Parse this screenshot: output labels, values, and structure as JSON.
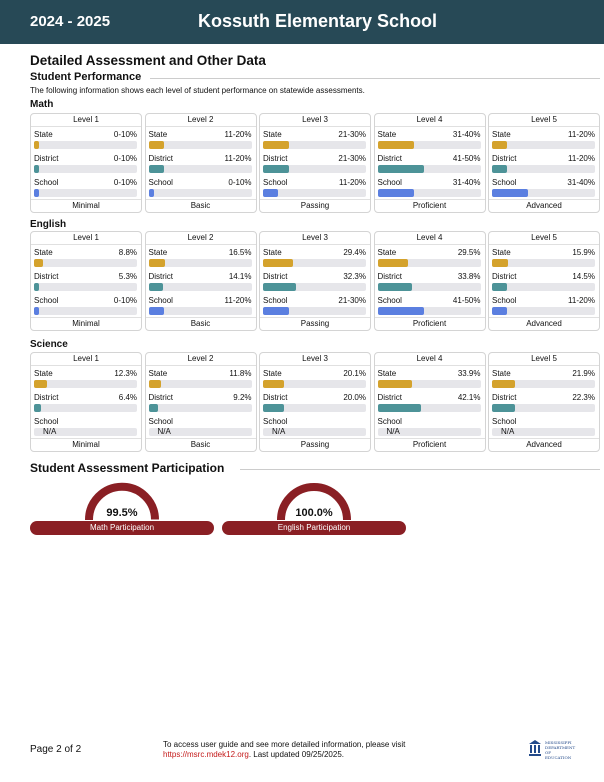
{
  "header": {
    "year": "2024 - 2025",
    "school": "Kossuth Elementary School"
  },
  "page_title": "Detailed Assessment and Other Data",
  "performance": {
    "title": "Student Performance",
    "description": "The following information shows each level of student performance on statewide assessments.",
    "subjects": [
      {
        "name": "Math",
        "levels": [
          {
            "header": "Level 1",
            "footer": "Minimal",
            "state": "0-10%",
            "state_pct": 5,
            "district": "0-10%",
            "district_pct": 5,
            "school": "0-10%",
            "school_pct": 5
          },
          {
            "header": "Level 2",
            "footer": "Basic",
            "state": "11-20%",
            "state_pct": 15,
            "district": "11-20%",
            "district_pct": 15,
            "school": "0-10%",
            "school_pct": 5
          },
          {
            "header": "Level 3",
            "footer": "Passing",
            "state": "21-30%",
            "state_pct": 25,
            "district": "21-30%",
            "district_pct": 25,
            "school": "11-20%",
            "school_pct": 15
          },
          {
            "header": "Level 4",
            "footer": "Proficient",
            "state": "31-40%",
            "state_pct": 35,
            "district": "41-50%",
            "district_pct": 45,
            "school": "31-40%",
            "school_pct": 35
          },
          {
            "header": "Level 5",
            "footer": "Advanced",
            "state": "11-20%",
            "state_pct": 15,
            "district": "11-20%",
            "district_pct": 15,
            "school": "31-40%",
            "school_pct": 35
          }
        ]
      },
      {
        "name": "English",
        "levels": [
          {
            "header": "Level 1",
            "footer": "Minimal",
            "state": "8.8%",
            "state_pct": 8.8,
            "district": "5.3%",
            "district_pct": 5.3,
            "school": "0-10%",
            "school_pct": 5
          },
          {
            "header": "Level 2",
            "footer": "Basic",
            "state": "16.5%",
            "state_pct": 16.5,
            "district": "14.1%",
            "district_pct": 14.1,
            "school": "11-20%",
            "school_pct": 15
          },
          {
            "header": "Level 3",
            "footer": "Passing",
            "state": "29.4%",
            "state_pct": 29.4,
            "district": "32.3%",
            "district_pct": 32.3,
            "school": "21-30%",
            "school_pct": 25
          },
          {
            "header": "Level 4",
            "footer": "Proficient",
            "state": "29.5%",
            "state_pct": 29.5,
            "district": "33.8%",
            "district_pct": 33.8,
            "school": "41-50%",
            "school_pct": 45
          },
          {
            "header": "Level 5",
            "footer": "Advanced",
            "state": "15.9%",
            "state_pct": 15.9,
            "district": "14.5%",
            "district_pct": 14.5,
            "school": "11-20%",
            "school_pct": 15
          }
        ]
      },
      {
        "name": "Science",
        "levels": [
          {
            "header": "Level 1",
            "footer": "Minimal",
            "state": "12.3%",
            "state_pct": 12.3,
            "district": "6.4%",
            "district_pct": 6.4,
            "school": "N/A",
            "school_pct": null
          },
          {
            "header": "Level 2",
            "footer": "Basic",
            "state": "11.8%",
            "state_pct": 11.8,
            "district": "9.2%",
            "district_pct": 9.2,
            "school": "N/A",
            "school_pct": null
          },
          {
            "header": "Level 3",
            "footer": "Passing",
            "state": "20.1%",
            "state_pct": 20.1,
            "district": "20.0%",
            "district_pct": 20.0,
            "school": "N/A",
            "school_pct": null
          },
          {
            "header": "Level 4",
            "footer": "Proficient",
            "state": "33.9%",
            "state_pct": 33.9,
            "district": "42.1%",
            "district_pct": 42.1,
            "school": "N/A",
            "school_pct": null
          },
          {
            "header": "Level 5",
            "footer": "Advanced",
            "state": "21.9%",
            "state_pct": 21.9,
            "district": "22.3%",
            "district_pct": 22.3,
            "school": "N/A",
            "school_pct": null
          }
        ]
      }
    ],
    "row_labels": {
      "state": "State",
      "district": "District",
      "school": "School"
    }
  },
  "participation": {
    "title": "Student Assessment Participation",
    "gauges": [
      {
        "value": "99.5%",
        "pct": 99.5,
        "label": "Math Participation"
      },
      {
        "value": "100.0%",
        "pct": 100.0,
        "label": "English Participation"
      }
    ]
  },
  "footer": {
    "page": "Page 2 of 2",
    "line1": "To access user guide and see more detailed information, please visit",
    "link": "https://msrc.mdek12.org",
    "line2_suffix": ". Last updated 09/25/2025."
  },
  "logo": {
    "line1": "MISSISSIPPI",
    "line2": "DEPARTMENT OF",
    "line3": "EDUCATION"
  },
  "colors": {
    "header_bg": "#274956",
    "state": "#d4a22c",
    "district": "#4d9398",
    "school": "#5b7fe0",
    "gauge": "#8a1f24"
  }
}
